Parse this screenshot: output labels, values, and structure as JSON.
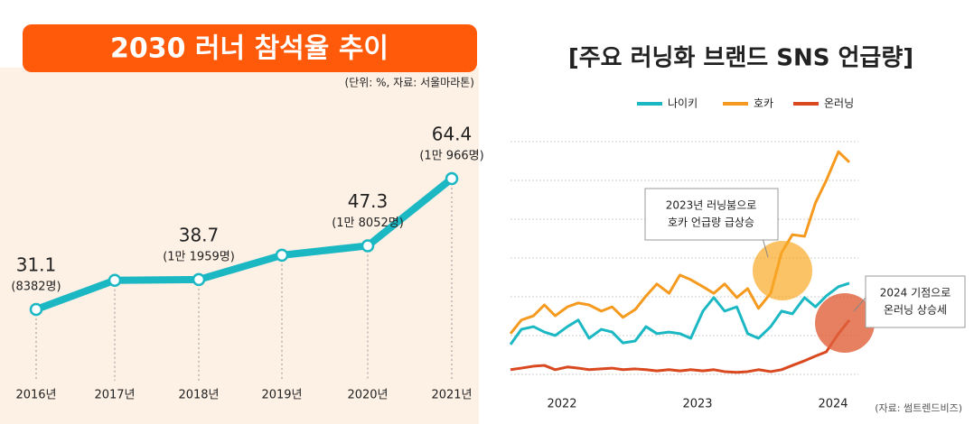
{
  "chart_data": [
    {
      "type": "line",
      "title": "2030 러너 참석율 추이",
      "note": "(단위: %, 자료: 서울마라톤)",
      "categories": [
        "2016년",
        "2017년",
        "2018년",
        "2019년",
        "2020년",
        "2021년"
      ],
      "values": [
        31.1,
        38.5,
        38.7,
        44.9,
        47.3,
        64.4
      ],
      "value_sublabels": [
        "(8382명)",
        null,
        "(1만 1959명)",
        null,
        "(1만 8052명)",
        "(1만 966명)"
      ],
      "color": "#1bb8c4"
    },
    {
      "type": "line",
      "title": "[주요 러닝화 브랜드 SNS 언급량]",
      "x": [
        2021.62,
        2021.7,
        2021.79,
        2021.87,
        2021.95,
        2022.04,
        2022.12,
        2022.2,
        2022.29,
        2022.37,
        2022.45,
        2022.54,
        2022.62,
        2022.7,
        2022.79,
        2022.87,
        2022.95,
        2023.04,
        2023.12,
        2023.2,
        2023.29,
        2023.37,
        2023.45,
        2023.54,
        2023.62,
        2023.7,
        2023.79,
        2023.87,
        2023.95,
        2024.04,
        2024.12
      ],
      "series": [
        {
          "name": "나이키",
          "color": "#1bb8c4",
          "values": [
            0.77,
            1.16,
            1.23,
            1.09,
            1.0,
            1.23,
            1.4,
            0.93,
            1.16,
            1.09,
            0.81,
            0.86,
            1.23,
            1.05,
            1.09,
            1.05,
            0.93,
            1.63,
            1.98,
            1.63,
            1.74,
            1.05,
            0.93,
            1.23,
            1.63,
            1.56,
            1.98,
            1.74,
            2.02,
            2.26,
            2.35
          ]
        },
        {
          "name": "호카",
          "color": "#f59a1e",
          "values": [
            1.05,
            1.4,
            1.51,
            1.79,
            1.51,
            1.74,
            1.84,
            1.79,
            1.63,
            1.74,
            1.47,
            1.67,
            2.02,
            2.33,
            2.09,
            2.56,
            2.44,
            2.26,
            2.09,
            2.33,
            1.98,
            2.21,
            1.7,
            2.09,
            3.14,
            3.6,
            3.56,
            4.42,
            5.0,
            5.74,
            5.47
          ]
        },
        {
          "name": "온러닝",
          "color": "#d9481e",
          "values": [
            0.12,
            0.16,
            0.21,
            0.23,
            0.12,
            0.19,
            0.16,
            0.12,
            0.14,
            0.16,
            0.12,
            0.14,
            0.12,
            0.09,
            0.12,
            0.09,
            0.12,
            0.09,
            0.12,
            0.07,
            0.05,
            0.07,
            0.12,
            0.07,
            0.12,
            0.23,
            0.35,
            0.47,
            0.58,
            1.05,
            1.4
          ]
        }
      ],
      "xticks": [
        2022,
        2023,
        2024
      ],
      "ylim": [
        -0.35,
        6
      ],
      "gridlines": [
        0,
        1,
        2,
        3,
        4,
        5,
        6
      ],
      "annotations": [
        [
          "2023년 러닝붐으로",
          "호카 언급량 급상승"
        ],
        [
          "2024 기점으로",
          "온러닝 상승세"
        ]
      ],
      "source": "(자료: 썸트렌드비즈)"
    }
  ]
}
